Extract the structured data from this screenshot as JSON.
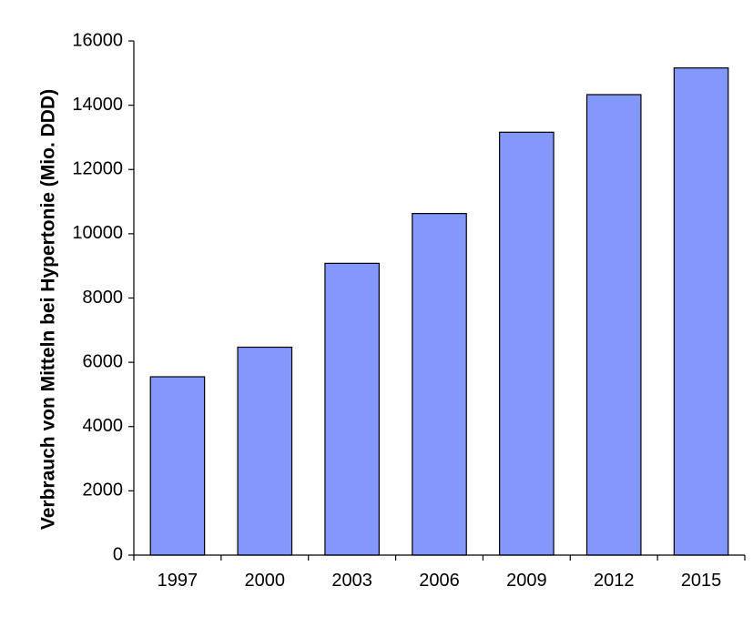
{
  "chart_data": {
    "type": "bar",
    "categories": [
      "1997",
      "2000",
      "2003",
      "2006",
      "2009",
      "2012",
      "2015"
    ],
    "values": [
      5550,
      6470,
      9080,
      10630,
      13160,
      14330,
      15160
    ],
    "title": "",
    "xlabel": "",
    "ylabel": "Verbrauch von Mitteln bei Hypertonie (Mio. DDD)",
    "ylim": [
      0,
      16000
    ],
    "yticks": [
      "0",
      "2000",
      "4000",
      "6000",
      "8000",
      "10000",
      "12000",
      "14000",
      "16000"
    ],
    "grid": false,
    "legend": "none",
    "colors": {
      "bar_fill": "#8497FD",
      "bar_stroke": "#000000",
      "axis": "#000000"
    }
  }
}
